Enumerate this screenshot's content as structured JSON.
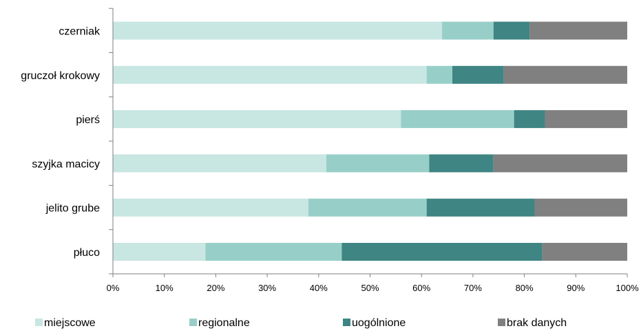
{
  "chart_data": {
    "type": "bar",
    "orientation": "horizontal",
    "stacked": true,
    "categories": [
      "płuco",
      "jelito grube",
      "szyjka macicy",
      "pierś",
      "gruczoł krokowy",
      "czerniak"
    ],
    "series": [
      {
        "name": "miejscowe",
        "color": "#c8e6e2",
        "values": [
          18,
          38,
          41.5,
          56,
          61,
          64
        ]
      },
      {
        "name": "regionalne",
        "color": "#97cfc8",
        "values": [
          26.5,
          23,
          20,
          22,
          5,
          10
        ]
      },
      {
        "name": "uogólnione",
        "color": "#3f8583",
        "values": [
          39,
          21,
          12.5,
          6,
          10,
          7
        ]
      },
      {
        "name": "brak danych",
        "color": "#808080",
        "values": [
          16.5,
          18,
          26,
          16,
          24,
          19
        ]
      }
    ],
    "xlim": [
      0,
      100
    ],
    "x_ticks": [
      "0%",
      "10%",
      "20%",
      "30%",
      "40%",
      "50%",
      "60%",
      "70%",
      "80%",
      "90%",
      "100%"
    ],
    "grid": false,
    "legend_position": "bottom"
  }
}
